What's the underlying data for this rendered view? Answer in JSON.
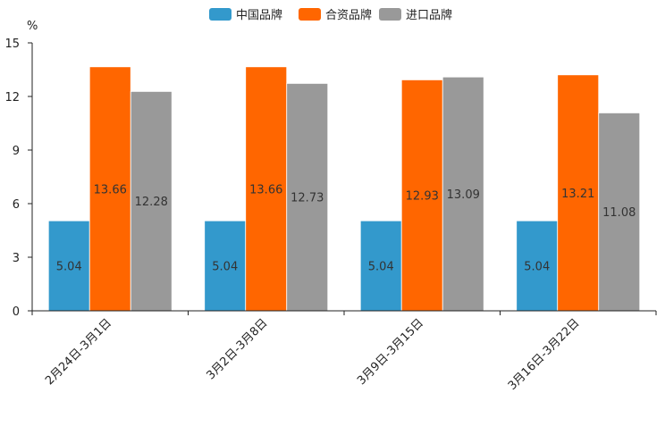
{
  "chart_data": {
    "type": "bar",
    "title": "",
    "xlabel": "",
    "ylabel": "%",
    "ylim": [
      0,
      15
    ],
    "yticks": [
      0,
      3,
      6,
      9,
      12,
      15
    ],
    "grid": false,
    "legend_position": "top-center",
    "categories": [
      "2月24日-3月1日",
      "3月2日-3月8日",
      "3月9日-3月15日",
      "3月16日-3月22日"
    ],
    "series": [
      {
        "name": "中国品牌",
        "color": "#3399cc",
        "values": [
          5.04,
          5.04,
          5.04,
          5.04
        ]
      },
      {
        "name": "合资品牌",
        "color": "#ff6600",
        "values": [
          13.66,
          13.66,
          12.93,
          13.21
        ]
      },
      {
        "name": "进口品牌",
        "color": "#999999",
        "values": [
          12.28,
          12.73,
          13.09,
          11.08
        ]
      }
    ]
  }
}
